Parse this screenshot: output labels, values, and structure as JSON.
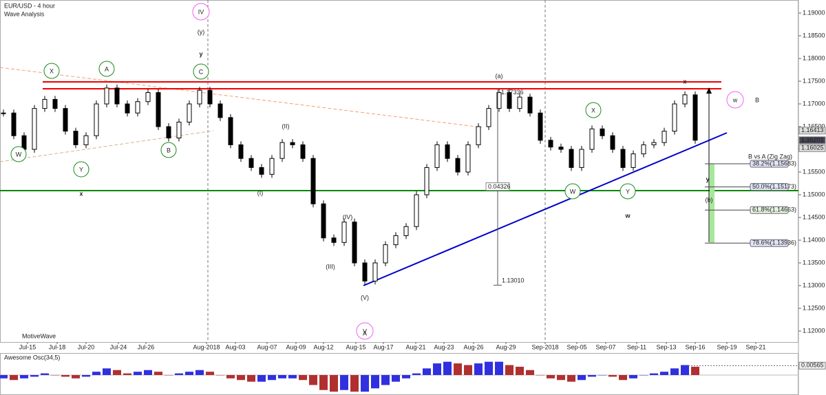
{
  "header": {
    "title": "EUR/USD - 4 hour",
    "subtitle": "Wave Analysis",
    "watermark": "MotiveWave"
  },
  "price_chart": {
    "type": "candlestick",
    "closes": [
      1.168,
      1.163,
      1.16,
      1.169,
      1.171,
      1.169,
      1.164,
      1.161,
      1.163,
      1.17,
      1.1735,
      1.17,
      1.168,
      1.1705,
      1.1725,
      1.165,
      1.1625,
      1.166,
      1.17,
      1.173,
      1.17,
      1.167,
      1.161,
      1.158,
      1.156,
      1.1545,
      1.158,
      1.1615,
      1.161,
      1.158,
      1.148,
      1.1405,
      1.1395,
      1.144,
      1.135,
      1.131,
      1.135,
      1.139,
      1.141,
      1.143,
      1.15,
      1.156,
      1.161,
      1.158,
      1.155,
      1.161,
      1.165,
      1.169,
      1.1725,
      1.169,
      1.1715,
      1.168,
      1.162,
      1.1605,
      1.16,
      1.156,
      1.16,
      1.1645,
      1.163,
      1.16,
      1.156,
      1.159,
      1.161,
      1.1615,
      1.164,
      1.17,
      1.172,
      1.162
    ],
    "ylim": [
      1.11758,
      1.19288
    ],
    "yticks": [
      {
        "value": 1.19,
        "label": "1.19000"
      },
      {
        "value": 1.185,
        "label": "1.18500"
      },
      {
        "value": 1.18,
        "label": "1.18000"
      },
      {
        "value": 1.175,
        "label": "1.17500"
      },
      {
        "value": 1.17,
        "label": "1.17000"
      },
      {
        "value": 1.165,
        "label": "1.16500"
      },
      {
        "value": 1.16,
        "label": "1.16000"
      },
      {
        "value": 1.155,
        "label": "1.15500"
      },
      {
        "value": 1.15,
        "label": "1.15000"
      },
      {
        "value": 1.145,
        "label": "1.14500"
      },
      {
        "value": 1.14,
        "label": "1.14000"
      },
      {
        "value": 1.135,
        "label": "1.13500"
      },
      {
        "value": 1.13,
        "label": "1.13000"
      },
      {
        "value": 1.125,
        "label": "1.12500"
      },
      {
        "value": 1.12,
        "label": "1.12000"
      }
    ],
    "x_labels": [
      "Jul-15",
      "Jul-18",
      "Jul-20",
      "Jul-24",
      "Jul-26",
      "Aug-2018",
      "Aug-03",
      "Aug-07",
      "Aug-09",
      "Aug-12",
      "Aug-15",
      "Aug-17",
      "Aug-21",
      "Aug-23",
      "Aug-26",
      "Aug-29",
      "Sep-2018",
      "Sep-05",
      "Sep-07",
      "Sep-11",
      "Sep-13",
      "Sep-16",
      "Sep-19",
      "Sep-21"
    ],
    "price_tags": [
      {
        "value": 1.16413,
        "label": "1.16413"
      },
      {
        "value": 1.16201,
        "label": "1.16201"
      },
      {
        "value": 1.16025,
        "label": "1.16025"
      }
    ],
    "measure": [
      {
        "value": 1.17336,
        "label": "1.17336"
      },
      {
        "value": 0.04326,
        "label": "0.04326"
      },
      {
        "value": 1.1301,
        "label": "1.13010"
      }
    ],
    "fib_title": "B vs A (Zig Zag)",
    "fib_levels": [
      {
        "value": 1.15683,
        "label": "38.2%(1.15683)"
      },
      {
        "value": 1.15173,
        "label": "50.0%(1.15173)"
      },
      {
        "value": 1.14663,
        "label": "61.8%(1.14663)"
      },
      {
        "value": 1.13936,
        "label": "78.6%(1.13936)"
      }
    ],
    "wave_labels": [
      "X",
      "A",
      "C",
      "W",
      "Y",
      "B",
      "X",
      "W",
      "Y",
      "IV",
      "V",
      "w",
      "(y)",
      "(II)",
      "(I)",
      "(III)",
      "(IV)",
      "(V)",
      "(a)",
      "(b)",
      "y",
      "x",
      "x",
      "y",
      "w",
      "A",
      "B"
    ]
  },
  "oscillator": {
    "title": "Awesome Osc(34,5)",
    "values": [
      -0.002,
      -0.003,
      -0.002,
      -0.001,
      0.001,
      0,
      -0.001,
      -0.002,
      -0.001,
      0.002,
      0.004,
      0.003,
      0.001,
      0.002,
      0.003,
      0.002,
      0,
      0.001,
      0.002,
      0.003,
      0.002,
      0,
      -0.002,
      -0.003,
      -0.004,
      -0.004,
      -0.003,
      -0.002,
      -0.002,
      -0.003,
      -0.006,
      -0.009,
      -0.01,
      -0.009,
      -0.01,
      -0.01,
      -0.008,
      -0.006,
      -0.004,
      -0.002,
      0.001,
      0.004,
      0.007,
      0.008,
      0.007,
      0.006,
      0.007,
      0.008,
      0.008,
      0.006,
      0.005,
      0.003,
      0,
      -0.002,
      -0.003,
      -0.004,
      -0.003,
      -0.001,
      0,
      -0.001,
      -0.003,
      -0.002,
      0,
      0.001,
      0.002,
      0.004,
      0.006,
      0.005
    ],
    "ylim": [
      -0.012,
      0.012
    ],
    "tag": {
      "value": 0.00565,
      "label": "0.00565"
    }
  }
}
